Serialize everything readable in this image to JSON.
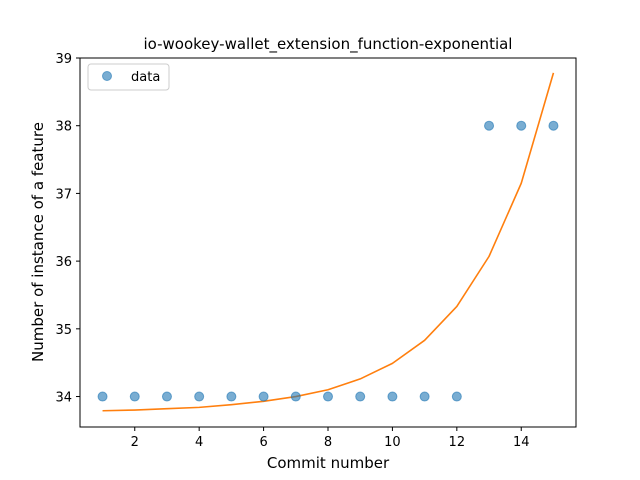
{
  "chart_data": {
    "type": "scatter",
    "title": "io-wookey-wallet_extension_function-exponential",
    "xlabel": "Commit number",
    "ylabel": "Number of instance of a feature",
    "xlim": [
      0.3,
      15.7
    ],
    "ylim": [
      33.55,
      39.0
    ],
    "xticks": [
      2,
      4,
      6,
      8,
      10,
      12,
      14
    ],
    "yticks": [
      34,
      35,
      36,
      37,
      38,
      39
    ],
    "grid": false,
    "legend": {
      "position": "upper-left",
      "entries": [
        "data"
      ]
    },
    "series": [
      {
        "name": "data",
        "kind": "scatter",
        "color": "#1f77b4",
        "x": [
          1,
          2,
          3,
          4,
          5,
          6,
          7,
          8,
          9,
          10,
          11,
          12,
          13,
          14,
          15
        ],
        "y": [
          34,
          34,
          34,
          34,
          34,
          34,
          34,
          34,
          34,
          34,
          34,
          34,
          38,
          38,
          38
        ]
      },
      {
        "kind": "line",
        "color": "#ff7f0e",
        "x": [
          1,
          2,
          3,
          4,
          5,
          6,
          7,
          8,
          9,
          10,
          11,
          12,
          13,
          14,
          15
        ],
        "y": [
          33.79,
          33.8,
          33.82,
          33.84,
          33.88,
          33.93,
          34.0,
          34.1,
          34.26,
          34.49,
          34.83,
          35.33,
          36.07,
          37.15,
          38.78
        ]
      }
    ]
  }
}
